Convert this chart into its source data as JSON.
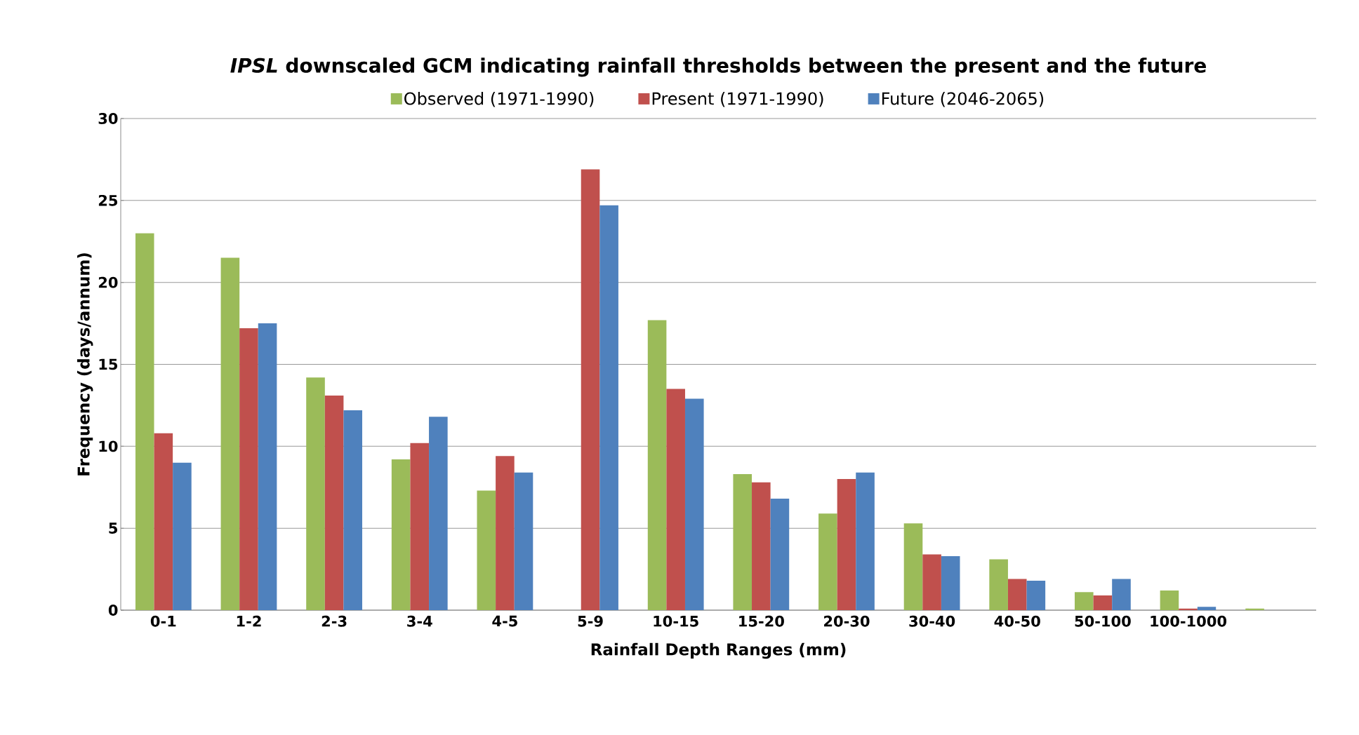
{
  "chart_data": {
    "type": "bar",
    "title": "*IPSL* downscaled GCM indicating rainfall thresholds between the present and the future",
    "xlabel": "Rainfall Depth Ranges (mm)",
    "ylabel": "Frequency (days/annum)",
    "categories": [
      "0-1",
      "1-2",
      "2-3",
      "3-4",
      "4-5",
      "5-9",
      "10-15",
      "15-20",
      "20-30",
      "30-40",
      "40-50",
      "50-100",
      "100-1000",
      null
    ],
    "series": [
      {
        "name": "Observed (1971-1990)",
        "color": "#9bbb59",
        "values": [
          23.0,
          21.5,
          14.2,
          9.2,
          7.3,
          null,
          17.7,
          8.3,
          5.9,
          5.3,
          3.1,
          1.1,
          1.2,
          0.1
        ]
      },
      {
        "name": "Present (1971-1990)",
        "color": "#c0504d",
        "values": [
          10.8,
          17.2,
          13.1,
          10.2,
          9.4,
          26.9,
          13.5,
          7.8,
          8.0,
          3.4,
          1.9,
          0.9,
          0.1,
          null
        ]
      },
      {
        "name": "Future (2046-2065)",
        "color": "#4f81bd",
        "values": [
          9.0,
          17.5,
          12.2,
          11.8,
          8.4,
          24.7,
          12.9,
          6.8,
          8.4,
          3.3,
          1.8,
          1.9,
          0.2,
          null
        ]
      }
    ],
    "ylim": [
      0,
      30
    ],
    "yticks": [
      0,
      5,
      10,
      15,
      20,
      25,
      30
    ],
    "grid": "y",
    "legend": "top"
  }
}
